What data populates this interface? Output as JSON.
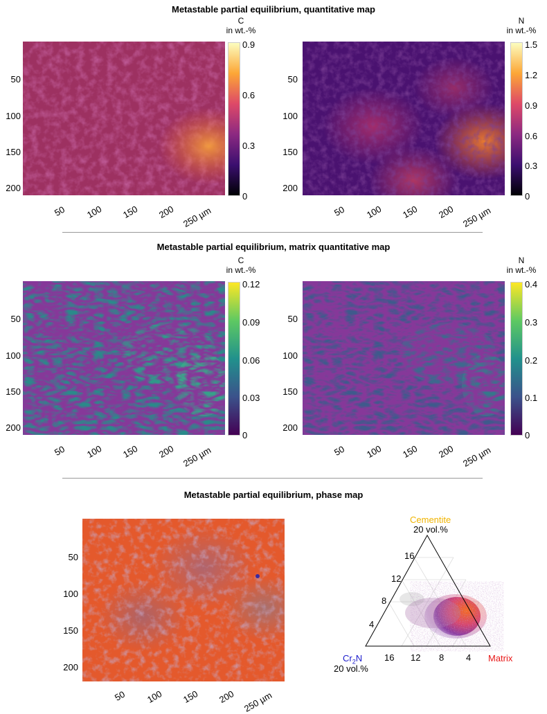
{
  "sections": [
    {
      "title": "Metastable partial equilibrium, quantitative map"
    },
    {
      "title": "Metastable partial equilibrium, matrix quantitative map"
    },
    {
      "title": "Metastable partial equilibrium, phase map"
    }
  ],
  "axis": {
    "y_ticks": [
      "50",
      "100",
      "150",
      "200"
    ],
    "x_ticks": [
      "50",
      "100",
      "150",
      "200",
      "250 µm"
    ]
  },
  "maps": [
    {
      "element": "C",
      "unit": "in wt.-%",
      "colormap": "inferno",
      "cbar_ticks": [
        "0.9",
        "0.6",
        "0.3",
        "0"
      ]
    },
    {
      "element": "N",
      "unit": "in wt.-%",
      "colormap": "inferno",
      "cbar_ticks": [
        "1.5",
        "1.2",
        "0.9",
        "0.6",
        "0.3",
        "0"
      ]
    },
    {
      "element": "C",
      "unit": "in wt.-%",
      "colormap": "viridis",
      "cbar_ticks": [
        "0.12",
        "0.09",
        "0.06",
        "0.03",
        "0"
      ]
    },
    {
      "element": "N",
      "unit": "in wt.-%",
      "colormap": "viridis",
      "cbar_ticks": [
        "0.4",
        "0.3",
        "0.2",
        "0.1",
        "0"
      ]
    }
  ],
  "ternary": {
    "top": {
      "label": "Cementite",
      "sub": "20 vol.%",
      "color": "#f0b400"
    },
    "left": {
      "label_main": "Cr",
      "label_sub": "2",
      "label_end": "N",
      "sub": "20 vol.%",
      "color": "#1a1acc"
    },
    "right": {
      "label": "Matrix",
      "color": "#e81818"
    },
    "left_edge_ticks": [
      "16",
      "12",
      "8",
      "4"
    ],
    "bottom_ticks": [
      "16",
      "12",
      "8",
      "4"
    ]
  },
  "colors": {
    "inferno_dark": "#1a0a3a",
    "inferno_mid": "#8a1f6b",
    "inferno_hot": "#e65c2e",
    "inferno_top": "#f8f29c",
    "viridis_low": "#3d0b52",
    "viridis_mid": "#2a8a8a",
    "viridis_top": "#e8e51a"
  }
}
